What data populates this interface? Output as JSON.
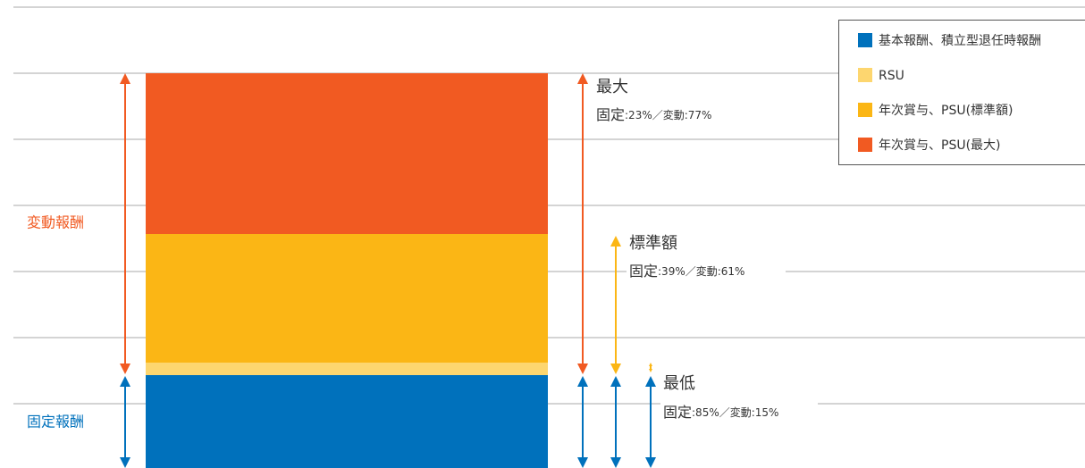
{
  "legend": [
    "基本報酬、積立型退任時報酬",
    "RSU",
    "年次賞与、PSU(標準額)",
    "年次賞与、PSU(最大)"
  ],
  "side_labels": {
    "variable": "変動報酬",
    "fixed": "固定報酬"
  },
  "annotations": [
    {
      "title": "最大",
      "lead": "固定",
      "detail": ":23%／変動:77%"
    },
    {
      "title": "標準額",
      "lead": "固定",
      "detail": ":39%／変動:61%"
    },
    {
      "title": "最低",
      "lead": "固定",
      "detail": ":85%／変動:15%"
    }
  ]
}
